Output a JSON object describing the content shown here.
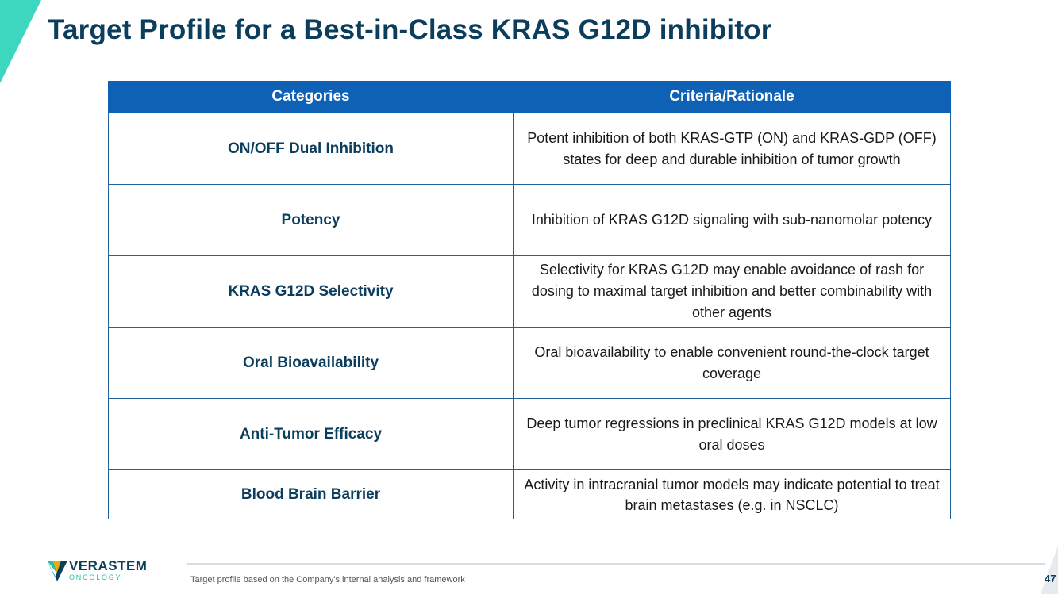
{
  "slide": {
    "title": "Target Profile for a Best-in-Class KRAS G12D inhibitor",
    "page_number": "47",
    "footnote": "Target profile based on the Company's internal analysis and framework"
  },
  "table": {
    "headers": [
      "Categories",
      "Criteria/Rationale"
    ],
    "rows": [
      {
        "category": "ON/OFF Dual Inhibition",
        "rationale": "Potent inhibition of both KRAS-GTP (ON) and KRAS-GDP (OFF) states for deep and durable inhibition of tumor growth"
      },
      {
        "category": "Potency",
        "rationale": "Inhibition of KRAS G12D signaling with sub-nanomolar potency"
      },
      {
        "category": "KRAS G12D Selectivity",
        "rationale": "Selectivity for KRAS G12D may enable avoidance of rash for dosing to maximal target inhibition and better combinability with other agents"
      },
      {
        "category": "Oral Bioavailability",
        "rationale": "Oral bioavailability to enable convenient round-the-clock target coverage"
      },
      {
        "category": "Anti-Tumor Efficacy",
        "rationale": "Deep tumor regressions in preclinical KRAS G12D models at low oral doses"
      },
      {
        "category": "Blood Brain Barrier",
        "rationale": "Activity in intracranial tumor models may indicate potential to treat brain metastases (e.g. in NSCLC)"
      }
    ]
  },
  "logo": {
    "brand": "VERASTEM",
    "sub": "ONCOLOGY"
  },
  "colors": {
    "title": "#0b3d5c",
    "header_bg": "#0f61b5",
    "accent": "#3dd6bf",
    "border": "#1f5f9a"
  }
}
